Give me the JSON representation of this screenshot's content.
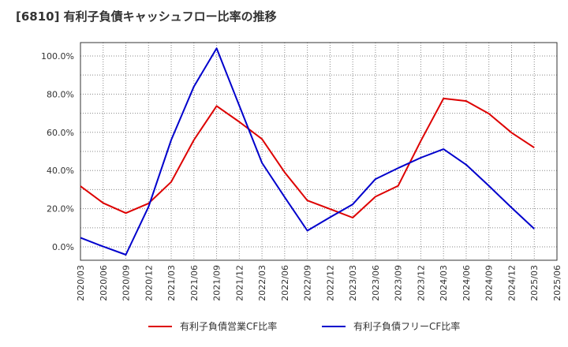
{
  "chart_data": {
    "type": "line",
    "title": "[6810]  有利子負債キャッシュフロー比率の推移",
    "x": [
      "2020/03",
      "2020/06",
      "2020/09",
      "2020/12",
      "2021/03",
      "2021/06",
      "2021/09",
      "2021/12",
      "2022/03",
      "2022/06",
      "2022/09",
      "2022/12",
      "2023/03",
      "2023/06",
      "2023/09",
      "2023/12",
      "2024/03",
      "2024/06",
      "2024/09",
      "2024/12",
      "2025/03",
      "2025/06"
    ],
    "y_ticks": [
      "0.0%",
      "20.0%",
      "40.0%",
      "60.0%",
      "80.0%",
      "100.0%"
    ],
    "ylim": [
      -7,
      107
    ],
    "grid": true,
    "legend_position": "bottom",
    "colors": {
      "series1": "#dd0000",
      "series2": "#0000cc"
    },
    "series": [
      {
        "name": "有利子負債営業CF比率",
        "color": "#dd0000",
        "values": [
          31.8,
          23.0,
          17.7,
          22.8,
          34.0,
          56.0,
          73.8,
          65.5,
          56.5,
          39.0,
          24.3,
          19.8,
          15.3,
          26.3,
          32.0,
          55.5,
          77.7,
          76.4,
          69.8,
          59.8,
          52.0,
          null
        ]
      },
      {
        "name": "有利子負債フリーCF比率",
        "color": "#0000cc",
        "values": [
          4.8,
          0.2,
          -4.1,
          21.0,
          56.0,
          84.0,
          104.0,
          74.0,
          44.0,
          26.0,
          8.5,
          15.5,
          22.3,
          35.5,
          41.3,
          46.7,
          51.2,
          43.0,
          32.0,
          20.5,
          9.5,
          null
        ]
      }
    ]
  }
}
